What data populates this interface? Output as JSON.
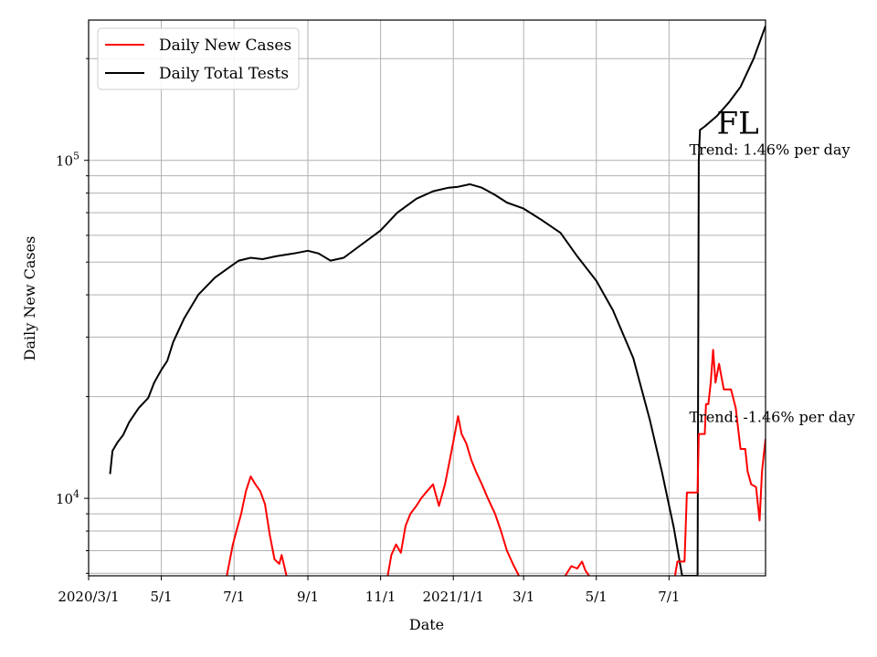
{
  "chart_data": {
    "type": "line",
    "title": "",
    "xlabel": "Date",
    "ylabel": "Daily New Cases",
    "y_scale": "log",
    "ylim": [
      5900,
      260000
    ],
    "xlim": [
      "2020-03-01",
      "2021-09-20"
    ],
    "grid": true,
    "legend_position": "top-left",
    "x_ticks": [
      {
        "date": "2020-03-01",
        "label": "2020/3/1"
      },
      {
        "date": "2020-05-01",
        "label": "5/1"
      },
      {
        "date": "2020-07-01",
        "label": "7/1"
      },
      {
        "date": "2020-09-01",
        "label": "9/1"
      },
      {
        "date": "2020-11-01",
        "label": "11/1"
      },
      {
        "date": "2021-01-01",
        "label": "2021/1/1"
      },
      {
        "date": "2021-03-01",
        "label": "3/1"
      },
      {
        "date": "2021-05-01",
        "label": "5/1"
      },
      {
        "date": "2021-07-01",
        "label": "7/1"
      }
    ],
    "y_major_ticks": [
      {
        "value": 10000,
        "base": "10",
        "exp": "4"
      },
      {
        "value": 100000,
        "base": "10",
        "exp": "5"
      }
    ],
    "annotations": [
      {
        "text": "FL",
        "date": "2021-08-10",
        "value": 120000,
        "kind": "state"
      },
      {
        "text": "Trend: 1.46% per day",
        "date": "2021-07-18",
        "value": 104000,
        "kind": "note"
      },
      {
        "text": "Trend: -1.46% per day",
        "date": "2021-07-18",
        "value": 16800,
        "kind": "note"
      }
    ],
    "series": [
      {
        "name": "Daily Total Tests",
        "color": "#000000",
        "points": [
          [
            "2020-03-19",
            11800
          ],
          [
            "2020-03-21",
            13800
          ],
          [
            "2020-03-25",
            14600
          ],
          [
            "2020-03-30",
            15400
          ],
          [
            "2020-04-04",
            16800
          ],
          [
            "2020-04-12",
            18500
          ],
          [
            "2020-04-20",
            19800
          ],
          [
            "2020-04-25",
            22000
          ],
          [
            "2020-05-01",
            24000
          ],
          [
            "2020-05-06",
            25500
          ],
          [
            "2020-05-11",
            29000
          ],
          [
            "2020-05-20",
            34000
          ],
          [
            "2020-06-01",
            40000
          ],
          [
            "2020-06-15",
            45000
          ],
          [
            "2020-06-28",
            48500
          ],
          [
            "2020-07-05",
            50500
          ],
          [
            "2020-07-15",
            51500
          ],
          [
            "2020-07-25",
            51000
          ],
          [
            "2020-08-05",
            52000
          ],
          [
            "2020-08-20",
            53000
          ],
          [
            "2020-09-01",
            54000
          ],
          [
            "2020-09-10",
            53000
          ],
          [
            "2020-09-20",
            50500
          ],
          [
            "2020-10-01",
            51500
          ],
          [
            "2020-10-15",
            56000
          ],
          [
            "2020-11-01",
            62000
          ],
          [
            "2020-11-15",
            70000
          ],
          [
            "2020-12-01",
            77000
          ],
          [
            "2020-12-15",
            81000
          ],
          [
            "2020-12-28",
            83000
          ],
          [
            "2021-01-05",
            83500
          ],
          [
            "2021-01-15",
            85000
          ],
          [
            "2021-01-25",
            83000
          ],
          [
            "2021-02-05",
            79000
          ],
          [
            "2021-02-15",
            75000
          ],
          [
            "2021-03-01",
            72000
          ],
          [
            "2021-03-15",
            67000
          ],
          [
            "2021-04-01",
            61000
          ],
          [
            "2021-04-15",
            52000
          ],
          [
            "2021-05-01",
            44000
          ],
          [
            "2021-05-15",
            36000
          ],
          [
            "2021-06-01",
            26000
          ],
          [
            "2021-06-15",
            17000
          ],
          [
            "2021-06-25",
            12000
          ],
          [
            "2021-07-05",
            8200
          ],
          [
            "2021-07-12",
            5900
          ],
          [
            "2021-07-25",
            5900
          ],
          [
            "2021-07-26",
            100000
          ],
          [
            "2021-07-27",
            123000
          ],
          [
            "2021-07-31",
            126000
          ],
          [
            "2021-08-10",
            135000
          ],
          [
            "2021-08-20",
            148000
          ],
          [
            "2021-08-30",
            165000
          ],
          [
            "2021-09-10",
            200000
          ],
          [
            "2021-09-20",
            250000
          ]
        ]
      },
      {
        "name": "Daily New Cases",
        "color": "#ff0000",
        "segments": [
          [
            [
              "2020-06-25",
              5900
            ],
            [
              "2020-06-30",
              7300
            ],
            [
              "2020-07-03",
              8000
            ],
            [
              "2020-07-07",
              9000
            ],
            [
              "2020-07-11",
              10500
            ],
            [
              "2020-07-15",
              11600
            ],
            [
              "2020-07-19",
              11000
            ],
            [
              "2020-07-23",
              10500
            ],
            [
              "2020-07-27",
              9600
            ],
            [
              "2020-07-31",
              7800
            ],
            [
              "2020-08-04",
              6600
            ],
            [
              "2020-08-08",
              6400
            ],
            [
              "2020-08-10",
              6800
            ],
            [
              "2020-08-14",
              5900
            ]
          ],
          [
            [
              "2020-11-07",
              5900
            ],
            [
              "2020-11-10",
              6800
            ],
            [
              "2020-11-14",
              7300
            ],
            [
              "2020-11-18",
              6900
            ],
            [
              "2020-11-22",
              8300
            ],
            [
              "2020-11-26",
              9000
            ],
            [
              "2020-12-01",
              9500
            ],
            [
              "2020-12-05",
              10000
            ],
            [
              "2020-12-10",
              10500
            ],
            [
              "2020-12-15",
              11000
            ],
            [
              "2020-12-20",
              9500
            ],
            [
              "2020-12-25",
              11000
            ],
            [
              "2020-12-30",
              13500
            ],
            [
              "2021-01-03",
              16000
            ],
            [
              "2021-01-05",
              17500
            ],
            [
              "2021-01-08",
              15500
            ],
            [
              "2021-01-12",
              14500
            ],
            [
              "2021-01-16",
              13000
            ],
            [
              "2021-01-20",
              12000
            ],
            [
              "2021-01-25",
              11000
            ],
            [
              "2021-01-30",
              10000
            ],
            [
              "2021-02-05",
              9000
            ],
            [
              "2021-02-10",
              8000
            ],
            [
              "2021-02-15",
              7000
            ],
            [
              "2021-02-20",
              6400
            ],
            [
              "2021-02-25",
              5900
            ]
          ],
          [
            [
              "2021-04-05",
              5900
            ],
            [
              "2021-04-10",
              6300
            ],
            [
              "2021-04-15",
              6200
            ],
            [
              "2021-04-19",
              6500
            ],
            [
              "2021-04-22",
              6100
            ],
            [
              "2021-04-25",
              5900
            ]
          ],
          [
            [
              "2021-07-06",
              5900
            ],
            [
              "2021-07-08",
              6500
            ],
            [
              "2021-07-14",
              6500
            ],
            [
              "2021-07-16",
              10400
            ],
            [
              "2021-07-25",
              10400
            ],
            [
              "2021-07-26",
              15500
            ],
            [
              "2021-07-31",
              15500
            ],
            [
              "2021-08-01",
              19000
            ],
            [
              "2021-08-03",
              19000
            ],
            [
              "2021-08-05",
              22000
            ],
            [
              "2021-08-07",
              27500
            ],
            [
              "2021-08-09",
              22000
            ],
            [
              "2021-08-12",
              25000
            ],
            [
              "2021-08-16",
              21000
            ],
            [
              "2021-08-22",
              21000
            ],
            [
              "2021-08-26",
              18500
            ],
            [
              "2021-08-30",
              14000
            ],
            [
              "2021-09-03",
              14000
            ],
            [
              "2021-09-05",
              12000
            ],
            [
              "2021-09-08",
              11000
            ],
            [
              "2021-09-12",
              10800
            ],
            [
              "2021-09-15",
              8600
            ],
            [
              "2021-09-17",
              12000
            ],
            [
              "2021-09-20",
              15000
            ]
          ]
        ]
      }
    ]
  }
}
